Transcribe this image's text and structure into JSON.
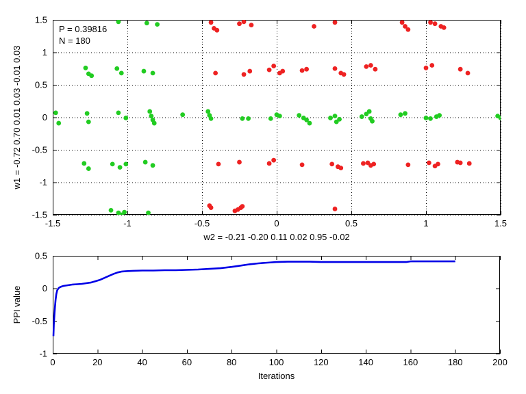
{
  "figure": {
    "background": "#ffffff"
  },
  "chart_data": [
    {
      "type": "scatter",
      "title": "",
      "xlabel": "w2 = -0.21  -0.20  0.11  0.02  0.95  -0.02",
      "ylabel": "w1 = -0.72  0.70  0.01  0.03  -0.01  0.03",
      "annotations": [
        "P = 0.39816",
        "N = 180"
      ],
      "xlim": [
        -1.5,
        1.5
      ],
      "ylim": [
        -1.5,
        1.5
      ],
      "xticks": [
        -1.5,
        -1,
        -0.5,
        0,
        0.5,
        1,
        1.5
      ],
      "xtick_labels": [
        "-1.5",
        "-1",
        "-0.5",
        "0",
        "0.5",
        "1",
        "1.5"
      ],
      "yticks": [
        -1.5,
        -1,
        -0.5,
        0,
        0.5,
        1,
        1.5
      ],
      "ytick_labels": [
        "-1.5",
        "-1",
        "-0.5",
        "0",
        "0.5",
        "1",
        "1.5"
      ],
      "grid": true,
      "legend": "none",
      "series": [
        {
          "name": "class-green",
          "color": "#22cc22",
          "points": [
            [
              -1.06,
              1.47
            ],
            [
              -0.87,
              1.45
            ],
            [
              -0.8,
              1.43
            ],
            [
              -1.28,
              0.76
            ],
            [
              -1.26,
              0.67
            ],
            [
              -1.24,
              0.64
            ],
            [
              -1.07,
              0.75
            ],
            [
              -1.04,
              0.68
            ],
            [
              -0.89,
              0.71
            ],
            [
              -0.83,
              0.68
            ],
            [
              -1.48,
              0.07
            ],
            [
              -1.46,
              -0.09
            ],
            [
              -1.27,
              0.06
            ],
            [
              -1.26,
              -0.07
            ],
            [
              -1.06,
              0.07
            ],
            [
              -1.01,
              -0.01
            ],
            [
              -0.85,
              0.09
            ],
            [
              -0.84,
              0.02
            ],
            [
              -0.83,
              -0.04
            ],
            [
              -0.82,
              -0.09
            ],
            [
              -0.63,
              0.04
            ],
            [
              -0.46,
              0.09
            ],
            [
              -0.45,
              0.03
            ],
            [
              -0.44,
              -0.02
            ],
            [
              -0.23,
              -0.02
            ],
            [
              -0.19,
              -0.02
            ],
            [
              -0.04,
              -0.02
            ],
            [
              0.0,
              0.04
            ],
            [
              0.02,
              0.02
            ],
            [
              0.15,
              0.03
            ],
            [
              0.18,
              -0.01
            ],
            [
              0.2,
              -0.04
            ],
            [
              0.22,
              -0.09
            ],
            [
              0.36,
              -0.01
            ],
            [
              0.39,
              0.02
            ],
            [
              0.4,
              -0.07
            ],
            [
              0.42,
              -0.03
            ],
            [
              0.57,
              0.01
            ],
            [
              0.6,
              0.05
            ],
            [
              0.62,
              0.09
            ],
            [
              0.63,
              -0.02
            ],
            [
              0.64,
              -0.06
            ],
            [
              0.83,
              0.04
            ],
            [
              0.86,
              0.06
            ],
            [
              1.0,
              -0.01
            ],
            [
              1.03,
              -0.02
            ],
            [
              1.07,
              0.01
            ],
            [
              1.09,
              0.03
            ],
            [
              1.48,
              0.02
            ],
            [
              1.5,
              -0.01
            ],
            [
              -1.29,
              -0.71
            ],
            [
              -1.26,
              -0.79
            ],
            [
              -1.1,
              -0.72
            ],
            [
              -1.05,
              -0.77
            ],
            [
              -1.01,
              -0.72
            ],
            [
              -0.88,
              -0.69
            ],
            [
              -0.83,
              -0.74
            ],
            [
              -1.11,
              -1.43
            ],
            [
              -1.06,
              -1.47
            ],
            [
              -1.04,
              -1.5
            ],
            [
              -1.02,
              -1.46
            ],
            [
              -0.86,
              -1.47
            ]
          ]
        },
        {
          "name": "class-red",
          "color": "#ee2222",
          "points": [
            [
              -0.44,
              1.46
            ],
            [
              -0.42,
              1.37
            ],
            [
              -0.4,
              1.34
            ],
            [
              -0.25,
              1.44
            ],
            [
              -0.22,
              1.47
            ],
            [
              -0.17,
              1.42
            ],
            [
              0.25,
              1.4
            ],
            [
              0.39,
              1.46
            ],
            [
              0.84,
              1.46
            ],
            [
              0.86,
              1.4
            ],
            [
              0.88,
              1.35
            ],
            [
              1.03,
              1.46
            ],
            [
              1.06,
              1.44
            ],
            [
              1.1,
              1.4
            ],
            [
              1.12,
              1.38
            ],
            [
              -0.41,
              0.68
            ],
            [
              -0.22,
              0.66
            ],
            [
              -0.18,
              0.71
            ],
            [
              -0.05,
              0.73
            ],
            [
              -0.02,
              0.79
            ],
            [
              0.02,
              0.68
            ],
            [
              0.04,
              0.71
            ],
            [
              0.17,
              0.72
            ],
            [
              0.2,
              0.74
            ],
            [
              0.39,
              0.75
            ],
            [
              0.43,
              0.68
            ],
            [
              0.45,
              0.66
            ],
            [
              0.6,
              0.78
            ],
            [
              0.63,
              0.8
            ],
            [
              0.66,
              0.74
            ],
            [
              1.0,
              0.76
            ],
            [
              1.04,
              0.8
            ],
            [
              1.23,
              0.74
            ],
            [
              1.28,
              0.68
            ],
            [
              -0.39,
              -0.72
            ],
            [
              -0.25,
              -0.69
            ],
            [
              -0.05,
              -0.71
            ],
            [
              -0.02,
              -0.66
            ],
            [
              0.17,
              -0.73
            ],
            [
              0.37,
              -0.72
            ],
            [
              0.41,
              -0.76
            ],
            [
              0.43,
              -0.78
            ],
            [
              0.58,
              -0.71
            ],
            [
              0.61,
              -0.7
            ],
            [
              0.63,
              -0.74
            ],
            [
              0.65,
              -0.72
            ],
            [
              0.88,
              -0.73
            ],
            [
              1.02,
              -0.7
            ],
            [
              1.06,
              -0.75
            ],
            [
              1.08,
              -0.72
            ],
            [
              1.21,
              -0.69
            ],
            [
              1.23,
              -0.7
            ],
            [
              1.29,
              -0.71
            ],
            [
              -0.45,
              -1.36
            ],
            [
              -0.44,
              -1.39
            ],
            [
              -0.28,
              -1.44
            ],
            [
              -0.26,
              -1.42
            ],
            [
              -0.24,
              -1.39
            ],
            [
              -0.23,
              -1.37
            ],
            [
              0.39,
              -1.41
            ]
          ]
        }
      ]
    },
    {
      "type": "line",
      "title": "",
      "xlabel": "Iterations",
      "ylabel": "PPI value",
      "xlim": [
        0,
        200
      ],
      "ylim": [
        -1,
        0.5
      ],
      "xticks": [
        0,
        20,
        40,
        60,
        80,
        100,
        120,
        140,
        160,
        180,
        200
      ],
      "xtick_labels": [
        "0",
        "20",
        "40",
        "60",
        "80",
        "100",
        "120",
        "140",
        "160",
        "180",
        "200"
      ],
      "yticks": [
        -1,
        -0.5,
        0,
        0.5
      ],
      "ytick_labels": [
        "-1",
        "-0.5",
        "0",
        "0.5"
      ],
      "grid": false,
      "legend": "none",
      "color": "#0000e6",
      "points": [
        [
          0.3,
          -0.73
        ],
        [
          0.5,
          -0.55
        ],
        [
          0.8,
          -0.38
        ],
        [
          1,
          -0.28
        ],
        [
          1.3,
          -0.17
        ],
        [
          1.6,
          -0.09
        ],
        [
          2,
          -0.03
        ],
        [
          2.5,
          0.0
        ],
        [
          3,
          0.015
        ],
        [
          4,
          0.03
        ],
        [
          5,
          0.04
        ],
        [
          7,
          0.05
        ],
        [
          9,
          0.06
        ],
        [
          11,
          0.065
        ],
        [
          13,
          0.07
        ],
        [
          15,
          0.08
        ],
        [
          17,
          0.09
        ],
        [
          19,
          0.11
        ],
        [
          21,
          0.13
        ],
        [
          23,
          0.16
        ],
        [
          25,
          0.19
        ],
        [
          27,
          0.22
        ],
        [
          29,
          0.245
        ],
        [
          31,
          0.26
        ],
        [
          33,
          0.265
        ],
        [
          36,
          0.27
        ],
        [
          40,
          0.275
        ],
        [
          45,
          0.275
        ],
        [
          50,
          0.28
        ],
        [
          55,
          0.28
        ],
        [
          60,
          0.285
        ],
        [
          65,
          0.29
        ],
        [
          70,
          0.3
        ],
        [
          75,
          0.31
        ],
        [
          80,
          0.33
        ],
        [
          84,
          0.35
        ],
        [
          88,
          0.37
        ],
        [
          92,
          0.385
        ],
        [
          96,
          0.395
        ],
        [
          100,
          0.405
        ],
        [
          105,
          0.41
        ],
        [
          110,
          0.41
        ],
        [
          115,
          0.41
        ],
        [
          120,
          0.405
        ],
        [
          130,
          0.405
        ],
        [
          140,
          0.405
        ],
        [
          150,
          0.405
        ],
        [
          158,
          0.405
        ],
        [
          160,
          0.415
        ],
        [
          170,
          0.415
        ],
        [
          180,
          0.415
        ]
      ]
    }
  ]
}
